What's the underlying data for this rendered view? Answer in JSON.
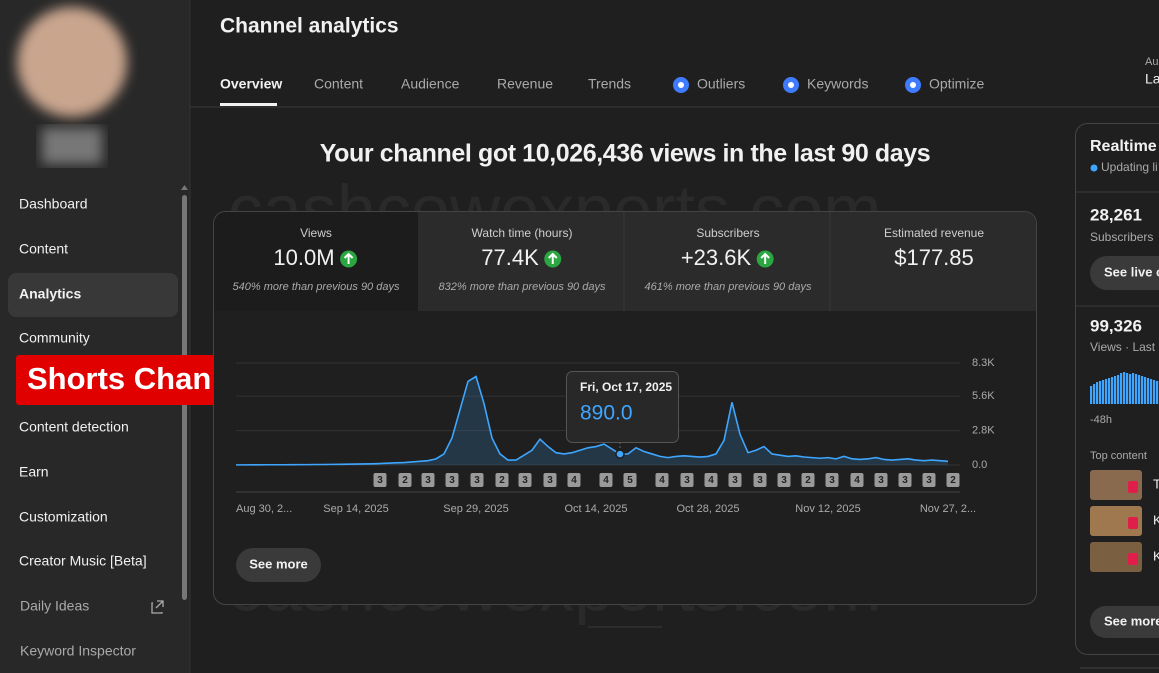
{
  "sidebar": {
    "items": [
      "Dashboard",
      "Content",
      "Analytics",
      "Community",
      "Content detection",
      "Earn",
      "Customization",
      "Creator Music [Beta]",
      "Daily Ideas",
      "Keyword Inspector"
    ]
  },
  "overlay_label": "Shorts Channel",
  "watermark": "cashcowexperts.com",
  "header": {
    "title": "Channel analytics",
    "tabs": [
      "Overview",
      "Content",
      "Audience",
      "Revenue",
      "Trends",
      "Outliers",
      "Keywords",
      "Optimize"
    ],
    "cropped": [
      "Au",
      "La"
    ]
  },
  "headline": "Your channel got 10,026,436 views in the last 90 days",
  "metrics": [
    {
      "label": "Views",
      "value": "10.0M",
      "note": "540% more than previous 90 days",
      "up": true
    },
    {
      "label": "Watch time (hours)",
      "value": "77.4K",
      "note": "832% more than previous 90 days",
      "up": true
    },
    {
      "label": "Subscribers",
      "value": "+23.6K",
      "note": "461% more than previous 90 days",
      "up": true
    },
    {
      "label": "Estimated revenue",
      "value": "$177.85",
      "up": false
    }
  ],
  "chart": {
    "type": "area",
    "color": "#3ea6ff",
    "categories": [
      "Aug 30, 2...",
      null,
      null,
      null,
      null,
      null,
      null,
      null,
      null,
      null,
      null,
      null,
      null,
      null,
      null,
      "Sep 14, 2025",
      null,
      null,
      null,
      null,
      null,
      null,
      null,
      null,
      null,
      null,
      null,
      null,
      null,
      null,
      "Sep 29, 2025",
      null,
      null,
      null,
      null,
      null,
      null,
      null,
      null,
      null,
      null,
      null,
      null,
      null,
      null,
      "Oct 14, 2025",
      null,
      null,
      null,
      null,
      null,
      null,
      null,
      null,
      null,
      null,
      null,
      null,
      null,
      "Oct 28, 2025",
      null,
      null,
      null,
      null,
      null,
      null,
      null,
      null,
      null,
      null,
      null,
      null,
      null,
      null,
      "Nov 12, 2025",
      null,
      null,
      null,
      null,
      null,
      null,
      null,
      null,
      null,
      null,
      null,
      null,
      null,
      null,
      "Nov 27, 2..."
    ],
    "values": [
      10,
      10,
      15,
      15,
      20,
      20,
      20,
      25,
      30,
      30,
      40,
      40,
      50,
      60,
      70,
      80,
      90,
      100,
      120,
      150,
      180,
      200,
      250,
      300,
      350,
      500,
      900,
      2200,
      4500,
      6800,
      7200,
      5000,
      2200,
      900,
      400,
      400,
      800,
      1200,
      2100,
      1500,
      1000,
      900,
      1000,
      1200,
      1400,
      1500,
      1700,
      1300,
      890,
      900,
      1400,
      1100,
      900,
      700,
      600,
      700,
      750,
      700,
      650,
      700,
      900,
      2000,
      5100,
      2500,
      1000,
      1200,
      1500,
      900,
      800,
      700,
      750,
      650,
      600,
      550,
      600,
      500,
      700,
      500,
      450,
      500,
      600,
      450,
      400,
      450,
      500,
      400,
      350,
      400,
      350,
      300
    ],
    "ylim": [
      0,
      8300
    ],
    "yticks": [
      {
        "value": 8300,
        "label": "8.3K"
      },
      {
        "value": 5600,
        "label": "5.6K"
      },
      {
        "value": 2800,
        "label": "2.8K"
      },
      {
        "value": 0,
        "label": "0.0"
      }
    ],
    "grid": true,
    "badges": [
      "3",
      "2",
      "3",
      "3",
      "3",
      "2",
      "3",
      "3",
      "4",
      "4",
      "5",
      "4",
      "3",
      "4",
      "3",
      "3",
      "3",
      "2",
      "3",
      "4",
      "3",
      "3",
      "3",
      "2"
    ],
    "tooltip": {
      "date": "Fri, Oct 17, 2025",
      "value": "890.0"
    }
  },
  "see_more": "See more",
  "realtime": {
    "title": "Realtime",
    "status": "Updating li",
    "subscribers": "28,261",
    "subscribers_label": "Subscribers",
    "live_button": "See live c",
    "views": "99,326",
    "views_label": "Views · Last",
    "bars": [
      18,
      20,
      22,
      23,
      24,
      25,
      26,
      27,
      28,
      29,
      31,
      32,
      31,
      30,
      31,
      30,
      29,
      28,
      27,
      26,
      25,
      24,
      23,
      22
    ],
    "axis_label": "-48h",
    "top_content": "Top content",
    "items": [
      "T",
      "K",
      "K"
    ],
    "see_more": "See more"
  }
}
